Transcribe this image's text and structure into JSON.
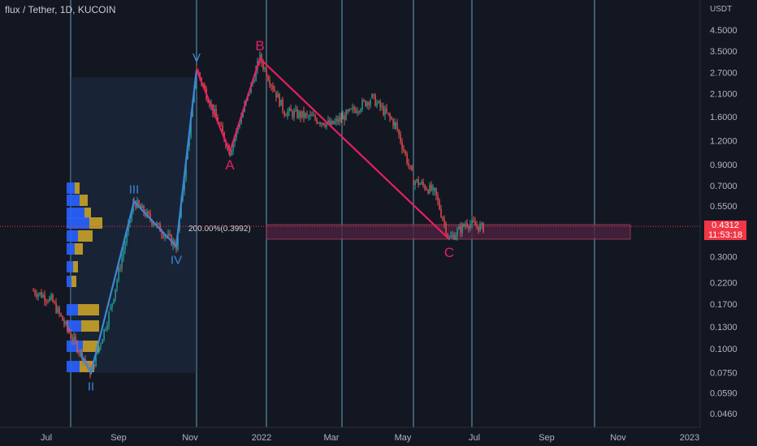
{
  "header": {
    "symbol_title": "flux / Tether, 1D, KUCOIN"
  },
  "axis": {
    "currency": "USDT",
    "price_ticks": [
      "4.5000",
      "3.5000",
      "2.7000",
      "2.1000",
      "1.6000",
      "1.2000",
      "0.9000",
      "0.7000",
      "0.5500",
      "0.3000",
      "0.2200",
      "0.1700",
      "0.1300",
      "0.1000",
      "0.0750",
      "0.0590",
      "0.0460"
    ],
    "time_ticks": [
      "Jul",
      "Sep",
      "Nov",
      "2022",
      "Mar",
      "May",
      "Jul",
      "Sep",
      "Nov",
      "2023"
    ]
  },
  "last_price": {
    "value": "0.4312",
    "countdown": "11:53:18"
  },
  "fib_label": "200.00%(0.3992)",
  "colors": {
    "background": "#131722",
    "up": "#26a69a",
    "down": "#ef5350",
    "wave_blue": "#3d86d6",
    "wave_red": "#e91e63",
    "vline": "#7ed6f0",
    "price_line": "#f23645",
    "vp_blue": "#2962ff",
    "vp_gold": "#c9a227"
  },
  "chart_data": {
    "type": "line",
    "scale": "log",
    "xlabel": "",
    "ylabel": "USDT",
    "x_range": [
      "2021-06-20",
      "2023-01-15"
    ],
    "ylim": [
      0.04,
      5.5
    ],
    "series": [
      {
        "name": "",
        "style": "elliott-impulse",
        "points": [
          {
            "date": "2021-07-30",
            "value": 0.095,
            "label": ""
          },
          {
            "date": "2021-08-08",
            "value": 0.075,
            "label": "II"
          },
          {
            "date": "2021-09-14",
            "value": 0.58,
            "label": "III"
          },
          {
            "date": "2021-10-20",
            "value": 0.34,
            "label": "IV"
          },
          {
            "date": "2021-11-06",
            "value": 2.8,
            "label": "V"
          }
        ]
      },
      {
        "name": "",
        "style": "elliott-correction",
        "points": [
          {
            "date": "2021-11-06",
            "value": 2.8,
            "label": ""
          },
          {
            "date": "2021-12-05",
            "value": 1.05,
            "label": "A"
          },
          {
            "date": "2021-12-30",
            "value": 3.2,
            "label": "B"
          },
          {
            "date": "2022-06-10",
            "value": 0.37,
            "label": "C"
          }
        ]
      }
    ],
    "vertical_lines": [
      "2021-07-22",
      "2021-11-06",
      "2022-01-05",
      "2022-03-10",
      "2022-05-10",
      "2022-06-29",
      "2022-10-12"
    ],
    "zone": {
      "from": "2022-01-05",
      "to": "2022-10-12",
      "low": 0.37,
      "high": 0.44
    },
    "box": {
      "from": "2021-07-22",
      "to": "2021-11-06",
      "low": 0.075,
      "high": 2.55
    },
    "fib_level": {
      "percent": 200.0,
      "price": 0.3992
    }
  }
}
